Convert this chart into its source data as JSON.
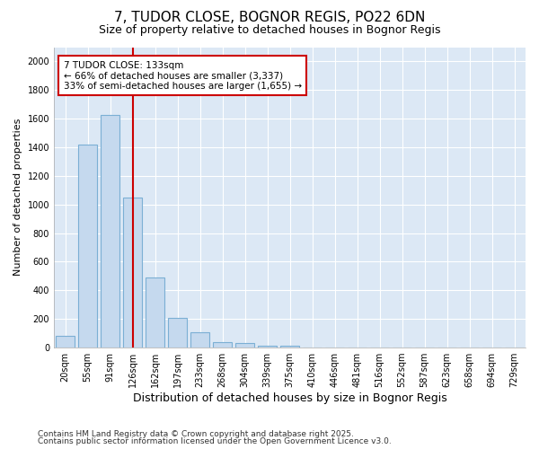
{
  "title1": "7, TUDOR CLOSE, BOGNOR REGIS, PO22 6DN",
  "title2": "Size of property relative to detached houses in Bognor Regis",
  "xlabel": "Distribution of detached houses by size in Bognor Regis",
  "ylabel": "Number of detached properties",
  "categories": [
    "20sqm",
    "55sqm",
    "91sqm",
    "126sqm",
    "162sqm",
    "197sqm",
    "233sqm",
    "268sqm",
    "304sqm",
    "339sqm",
    "375sqm",
    "410sqm",
    "446sqm",
    "481sqm",
    "516sqm",
    "552sqm",
    "587sqm",
    "623sqm",
    "658sqm",
    "694sqm",
    "729sqm"
  ],
  "values": [
    80,
    1420,
    1625,
    1050,
    490,
    205,
    110,
    40,
    30,
    15,
    10,
    0,
    0,
    0,
    0,
    0,
    0,
    0,
    0,
    0,
    0
  ],
  "bar_color": "#c5d9ee",
  "bar_edge_color": "#7bafd4",
  "red_line_x": 3.0,
  "annotation_text": "7 TUDOR CLOSE: 133sqm\n← 66% of detached houses are smaller (3,337)\n33% of semi-detached houses are larger (1,655) →",
  "annotation_box_color": "#ffffff",
  "annotation_box_edge": "#cc0000",
  "red_line_color": "#cc0000",
  "footer1": "Contains HM Land Registry data © Crown copyright and database right 2025.",
  "footer2": "Contains public sector information licensed under the Open Government Licence v3.0.",
  "ylim": [
    0,
    2100
  ],
  "bg_color": "#ffffff",
  "plot_bg_color": "#dce8f5",
  "grid_color": "#ffffff",
  "title1_fontsize": 11,
  "title2_fontsize": 9,
  "ylabel_fontsize": 8,
  "xlabel_fontsize": 9,
  "tick_fontsize": 7,
  "annotation_fontsize": 7.5,
  "footer_fontsize": 6.5
}
